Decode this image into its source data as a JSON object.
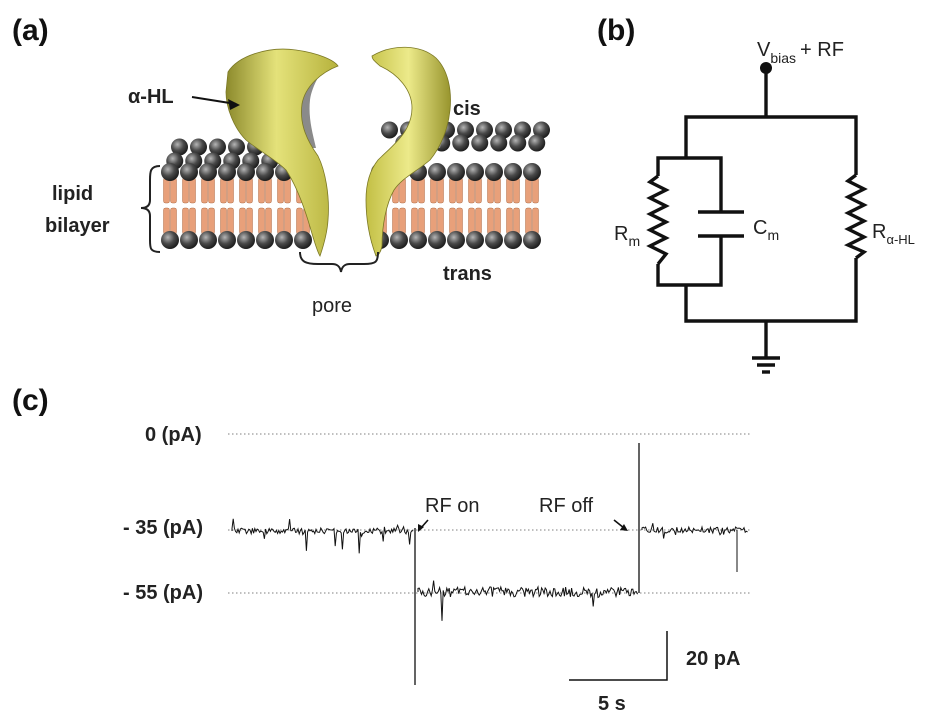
{
  "panels": {
    "a": {
      "label": "(a)",
      "toxin_label": "α-HL",
      "cis_label": "cis",
      "trans_label": "trans",
      "bilayer_label_line1": "lipid",
      "bilayer_label_line2": "bilayer",
      "pore_label": "pore"
    },
    "b": {
      "label": "(b)",
      "source_main": "V",
      "source_sub": "bias",
      "source_tail": "+ RF",
      "rm_main": "R",
      "rm_sub": "m",
      "cm_main": "C",
      "cm_sub": "m",
      "rhl_main": "R",
      "rhl_sub": "α-HL"
    },
    "c": {
      "label": "(c)",
      "level_0": "0 (pA)",
      "level_35": "- 35 (pA)",
      "level_55": "- 55 (pA)",
      "rf_on": "RF on",
      "rf_off": "RF off",
      "scale_current": "20 pA",
      "scale_time": "5 s"
    }
  },
  "colors": {
    "toxin": "#d4d05a",
    "lipid_tail": "#e8a07a",
    "lipid_head": "#3d3d3d",
    "line": "#111111"
  }
}
